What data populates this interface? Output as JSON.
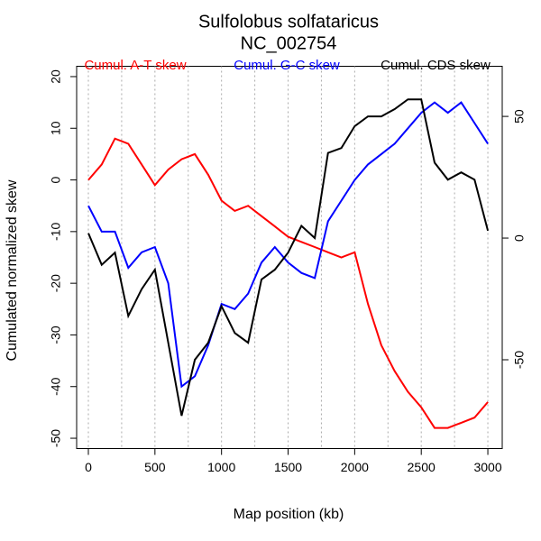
{
  "chart_data": {
    "type": "line",
    "title": "Sulfolobus solfataricus",
    "subtitle": "NC_002754",
    "xlabel": "Map position (kb)",
    "ylabel": "Cumulated normalized skew",
    "x": [
      0,
      100,
      200,
      300,
      400,
      500,
      600,
      700,
      800,
      900,
      1000,
      1100,
      1200,
      1300,
      1400,
      1500,
      1600,
      1700,
      1800,
      1900,
      2000,
      2100,
      2200,
      2300,
      2400,
      2500,
      2600,
      2700,
      2800,
      2900,
      3000
    ],
    "series": [
      {
        "name": "Cumul. A-T skew",
        "color": "#ff0000",
        "axis": "y",
        "values": [
          0,
          3,
          8,
          7,
          3,
          -1,
          2,
          4,
          5,
          1,
          -4,
          -6,
          -5,
          -7,
          -9,
          -11,
          -12,
          -13,
          -14,
          -15,
          -14,
          -24,
          -32,
          -37,
          -41,
          -44,
          -48,
          -48,
          -47,
          -46,
          -43
        ]
      },
      {
        "name": "Cumul. G-C skew",
        "color": "#0000ff",
        "axis": "y",
        "values": [
          -5,
          -10,
          -10,
          -17,
          -14,
          -13,
          -20,
          -40,
          -38,
          -32,
          -24,
          -25,
          -22,
          -16,
          -13,
          -16,
          -18,
          -19,
          -8,
          -4,
          0,
          3,
          5,
          7,
          10,
          13,
          15,
          13,
          15,
          11,
          7
        ]
      },
      {
        "name": "Cumul. CDS skew",
        "color": "#000000",
        "axis": "y2",
        "values": [
          2,
          -11,
          -6,
          -32,
          -21,
          -13,
          -43,
          -73,
          -50,
          -43,
          -28,
          -39,
          -43,
          -17,
          -13,
          -6,
          5,
          0,
          35,
          37,
          46,
          50,
          50,
          53,
          57,
          57,
          31,
          24,
          27,
          24,
          3
        ]
      }
    ],
    "xlim": [
      -88,
      3108
    ],
    "ylim": [
      -52,
      22
    ],
    "y2lim": [
      -86.5,
      70.6
    ],
    "xticks": [
      0,
      500,
      1000,
      1500,
      2000,
      2500,
      3000
    ],
    "yticks": [
      -50,
      -40,
      -30,
      -20,
      -10,
      0,
      10,
      20
    ],
    "y2ticks": [
      -50,
      0,
      50
    ],
    "xgrid": [
      0,
      250,
      500,
      750,
      1000,
      1250,
      1500,
      1750,
      2000,
      2250,
      2500,
      2750,
      3000
    ]
  }
}
